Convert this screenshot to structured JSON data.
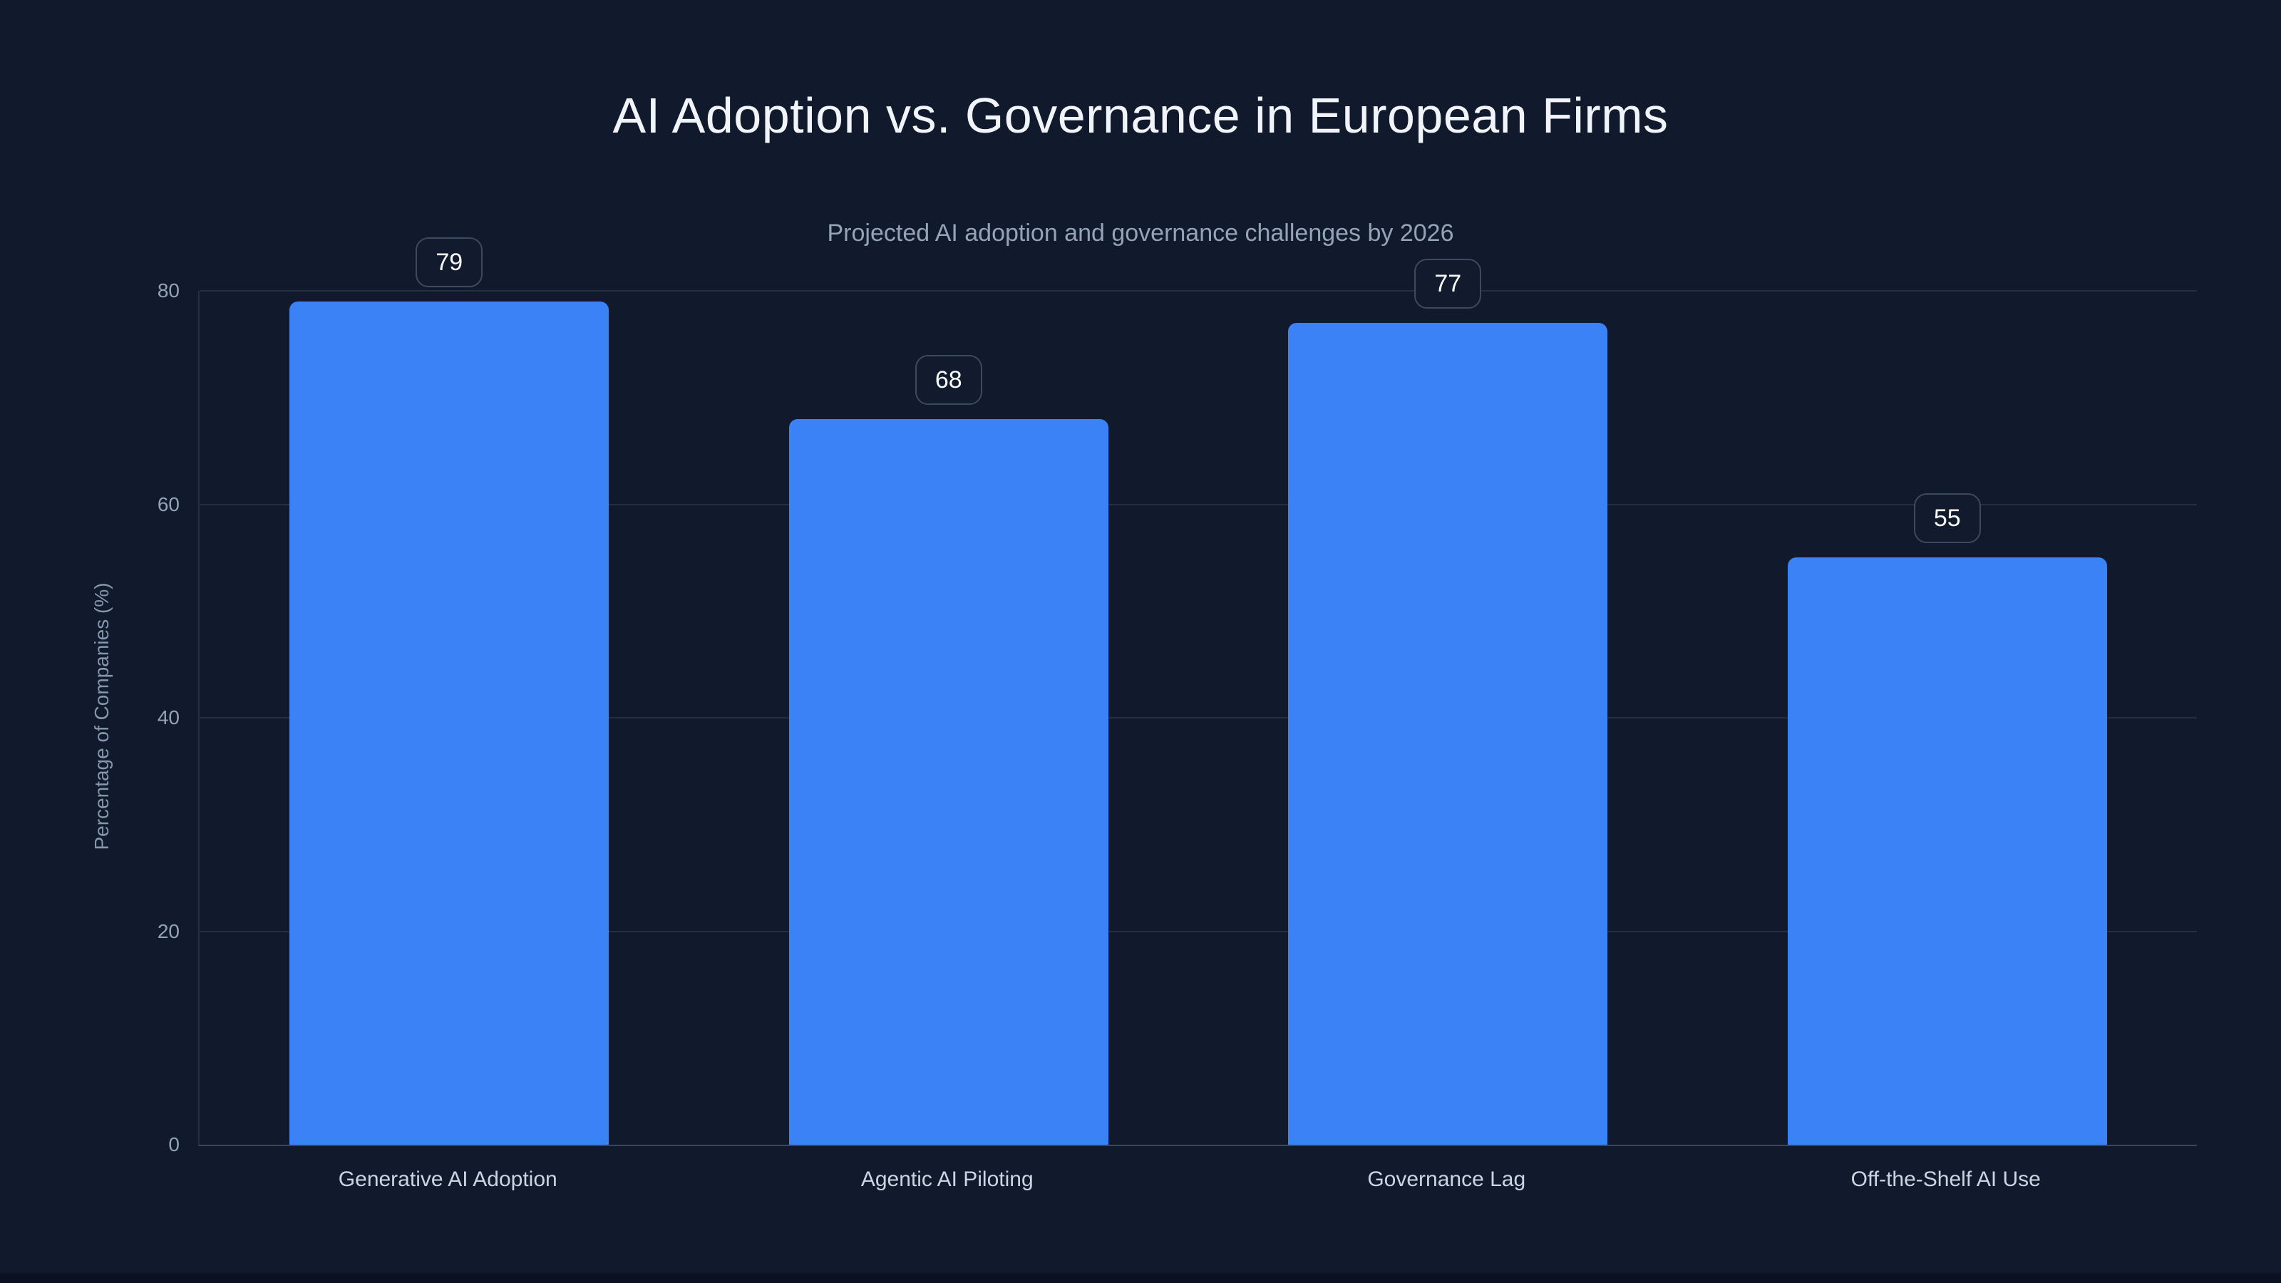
{
  "palette": {
    "page_background": "#0b1120",
    "card_background": "#111a2c",
    "bar_accent": "#3b82f6",
    "title_text": "#f1f5f9",
    "subtitle_text": "#94a3b8",
    "tick_text": "#94a3b8",
    "category_text": "#cbd5e1",
    "badge_text": "#f8fafc",
    "badge_border": "#3d495e",
    "gridline": "#94a3b8"
  },
  "chart_data": {
    "type": "bar",
    "title": "AI Adoption vs. Governance in European Firms",
    "subtitle": "Projected AI adoption and governance challenges by 2026",
    "ylabel": "Percentage of Companies (%)",
    "xlabel": "",
    "categories": [
      "Generative AI Adoption",
      "Agentic AI Piloting",
      "Governance Lag",
      "Off-the-Shelf AI Use"
    ],
    "values": [
      79,
      68,
      77,
      55
    ],
    "value_labels": [
      "79",
      "68",
      "77",
      "55"
    ],
    "ylim": [
      0,
      80
    ],
    "yticks": [
      0,
      20,
      40,
      60,
      80
    ],
    "grid": "horizontal",
    "legend": false,
    "value_label_style": "rounded-badge-above-bar"
  }
}
